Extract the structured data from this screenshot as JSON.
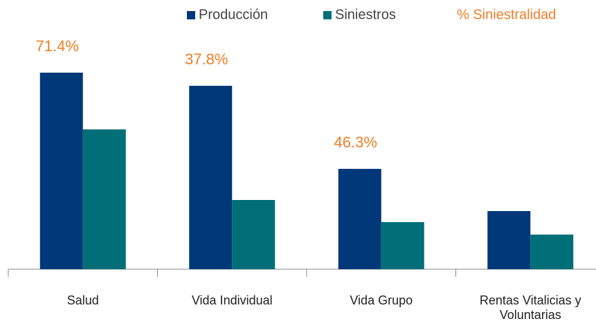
{
  "chart_data": {
    "type": "bar",
    "categories": [
      "Salud",
      "Vida Individual",
      "Vida Grupo",
      "Rentas Vitalicias y Voluntarias"
    ],
    "series": [
      {
        "name": "Producción",
        "color": "#00387a",
        "values": [
          284,
          265,
          145,
          84
        ]
      },
      {
        "name": "Siniestros",
        "color": "#006f78",
        "values": [
          202,
          100,
          68,
          50
        ]
      }
    ],
    "ratio": {
      "name": "% Siniestralidad",
      "color": "#f07e26",
      "values": [
        71.4,
        37.8,
        46.3,
        null
      ],
      "value_labels": [
        "71.4%",
        "37.8%",
        "46.3%",
        null
      ]
    }
  }
}
